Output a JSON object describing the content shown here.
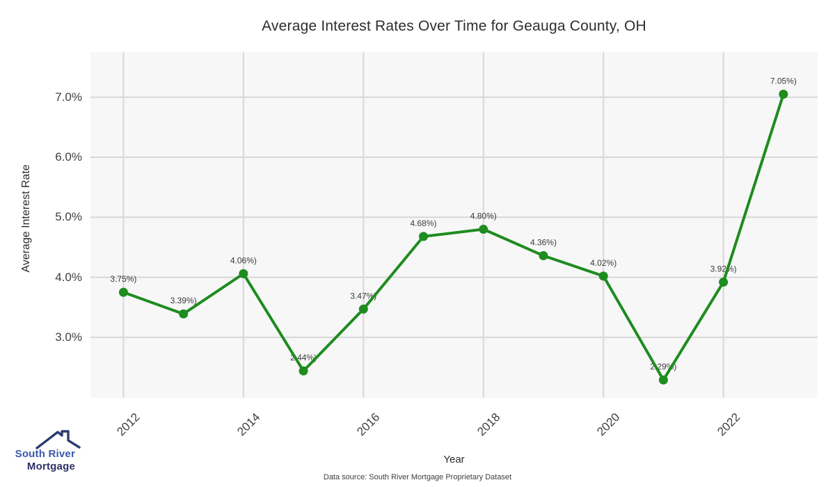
{
  "chart_data": {
    "type": "line",
    "title": "Average Interest Rates Over Time for Geauga County, OH",
    "xlabel": "Year",
    "ylabel": "Average Interest Rate",
    "x": [
      2012,
      2013,
      2014,
      2015,
      2016,
      2017,
      2018,
      2019,
      2020,
      2021,
      2022,
      2023
    ],
    "values": [
      3.75,
      3.39,
      4.06,
      2.44,
      3.47,
      4.68,
      4.8,
      4.36,
      4.02,
      2.29,
      3.92,
      7.05
    ],
    "point_labels": [
      "3.75%)",
      "3.39%)",
      "4.06%)",
      "2.44%)",
      "3.47%)",
      "4.68%)",
      "4.80%)",
      "4.36%)",
      "4.02%)",
      "2.29%)",
      "3.92%)",
      "7.05%)"
    ],
    "x_tick_years": [
      2012,
      2014,
      2016,
      2018,
      2020,
      2022
    ],
    "x_tick_labels": [
      "2012",
      "2014",
      "2016",
      "2018",
      "2020",
      "2022"
    ],
    "y_tick_values": [
      3,
      4,
      5,
      6,
      7
    ],
    "y_tick_labels": [
      "3.0%",
      "4.0%",
      "5.0%",
      "6.0%",
      "7.0%"
    ],
    "xlim": [
      2011.45,
      2023.57
    ],
    "ylim": [
      1.99,
      7.75
    ],
    "grid": true,
    "legend": false,
    "line_color": "#1e8c1e",
    "marker_color": "#1e8c1e",
    "plot_bg": "#f7f7f8",
    "grid_color": "#d7d7d7",
    "data_label_color": "#3a3a3a"
  },
  "footer": {
    "source": "Data source: South River Mortgage Proprietary Dataset"
  },
  "logo": {
    "line1": "South River",
    "line2": "Mortgage",
    "blue": "#3a57ad",
    "navy": "#2e2f68",
    "roof_color": "#2c3b72"
  }
}
